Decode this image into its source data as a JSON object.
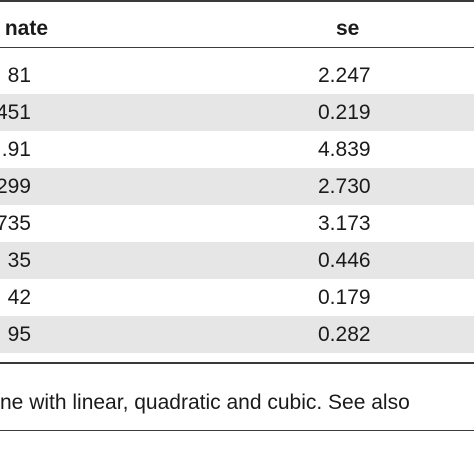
{
  "table": {
    "columns": {
      "estimate": "nate",
      "se": "se"
    },
    "rows": [
      {
        "estimate": "81",
        "se": "2.247"
      },
      {
        "estimate": "451",
        "se": "0.219"
      },
      {
        "estimate": ".91",
        "se": "4.839"
      },
      {
        "estimate": "299",
        "se": "2.730"
      },
      {
        "estimate": "735",
        "se": "3.173"
      },
      {
        "estimate": "35",
        "se": "0.446"
      },
      {
        "estimate": "42",
        "se": "0.179"
      },
      {
        "estimate": "95",
        "se": "0.282"
      }
    ]
  },
  "caption": "ne with linear, quadratic and cubic. See also",
  "colors": {
    "rule": "#3a3a3a",
    "shaded_row": "#e6e6e6",
    "text": "#1a1a1a"
  }
}
